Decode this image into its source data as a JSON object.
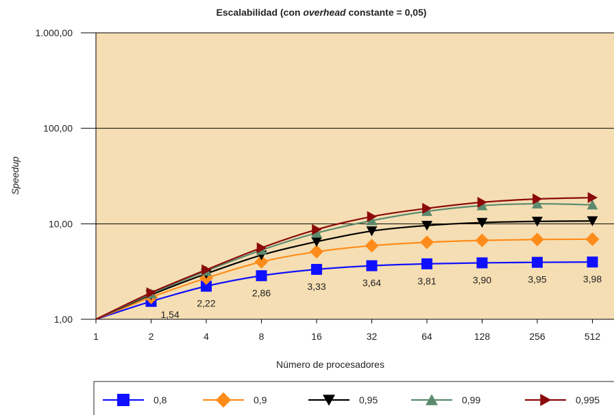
{
  "chart_data": {
    "type": "line",
    "title": {
      "before": "Escalabilidad (con ",
      "emph": "overhead",
      "after": " constante = 0,05)"
    },
    "xlabel": "Número de procesadores",
    "ylabel": "Speedup",
    "x_scale": "log2",
    "y_scale": "log10",
    "x": [
      1,
      2,
      4,
      8,
      16,
      32,
      64,
      128,
      256,
      512
    ],
    "x_tick_labels": [
      "1",
      "2",
      "4",
      "8",
      "16",
      "32",
      "64",
      "128",
      "256",
      "512"
    ],
    "ylim": [
      1,
      1000
    ],
    "y_ticks": [
      1,
      10,
      100,
      1000
    ],
    "y_tick_labels": [
      "1,00",
      "10,00",
      "100,00",
      "1.000,00"
    ],
    "grid": "horizontal",
    "legend_position": "bottom",
    "plot_background": "#F5DEB3",
    "series": [
      {
        "name": "0,8",
        "color": "#1010FF",
        "marker": "square",
        "values": [
          1.0,
          1.54,
          2.22,
          2.86,
          3.33,
          3.64,
          3.81,
          3.9,
          3.95,
          3.98
        ],
        "data_labels": [
          "",
          "1,54",
          "2,22",
          "2,86",
          "3,33",
          "3,64",
          "3,81",
          "3,90",
          "3,95",
          "3,98"
        ]
      },
      {
        "name": "0,9",
        "color": "#FF8C1A",
        "marker": "diamond",
        "values": [
          1.0,
          1.7,
          2.7,
          4.0,
          5.1,
          5.9,
          6.4,
          6.7,
          6.85,
          6.9
        ]
      },
      {
        "name": "0,95",
        "color": "#000000",
        "marker": "triangle-down",
        "values": [
          1.0,
          1.8,
          3.0,
          4.7,
          6.5,
          8.4,
          9.6,
          10.3,
          10.6,
          10.7
        ]
      },
      {
        "name": "0,99",
        "color": "#5B8A6E",
        "marker": "triangle-up",
        "values": [
          1.0,
          1.85,
          3.2,
          5.3,
          8.0,
          10.8,
          13.5,
          15.5,
          16.2,
          15.8
        ]
      },
      {
        "name": "0,995",
        "color": "#8B0A0A",
        "marker": "triangle-right",
        "values": [
          1.0,
          1.9,
          3.3,
          5.6,
          8.7,
          11.9,
          14.5,
          16.8,
          18.2,
          18.8
        ]
      }
    ]
  }
}
